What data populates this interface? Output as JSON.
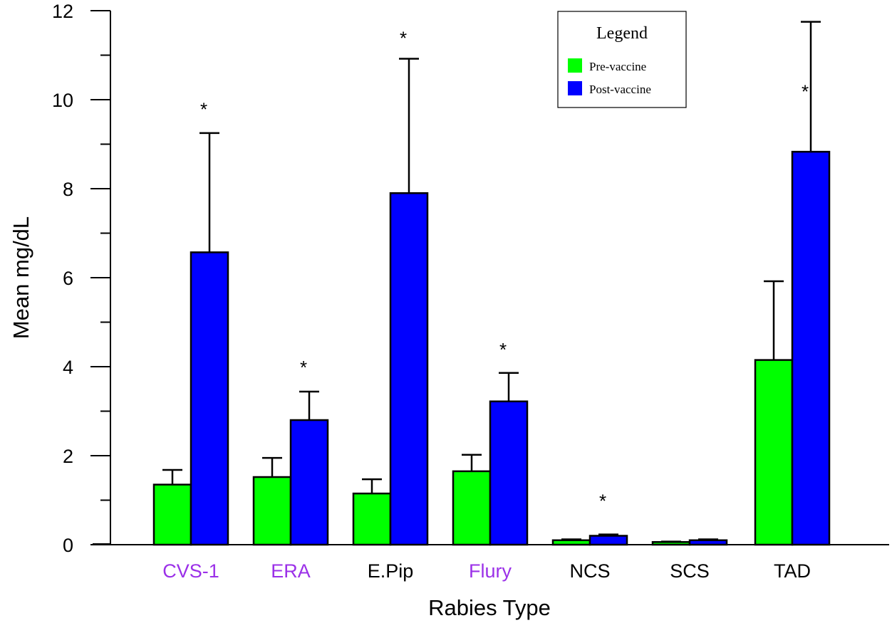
{
  "chart_data": {
    "type": "bar",
    "title": "",
    "xlabel": "Rabies Type",
    "ylabel": "Mean mg/dL",
    "ylim": [
      0,
      12
    ],
    "yticks": [
      0,
      2,
      4,
      6,
      8,
      10,
      12
    ],
    "grid": false,
    "categories": [
      "CVS-1",
      "ERA",
      "E.Pip",
      "Flury",
      "NCS",
      "SCS",
      "TAD"
    ],
    "category_colors": [
      "#9b30e8",
      "#9b30e8",
      "#000000",
      "#9b30e8",
      "#000000",
      "#000000",
      "#000000"
    ],
    "series": [
      {
        "name": "Pre-vaccine",
        "color": "#00ff00",
        "values": [
          1.35,
          1.52,
          1.15,
          1.65,
          0.1,
          0.06,
          4.15
        ],
        "errors": [
          0.33,
          0.43,
          0.32,
          0.37,
          0.02,
          0.01,
          1.77
        ]
      },
      {
        "name": "Post-vaccine",
        "color": "#0000ff",
        "values": [
          6.57,
          2.8,
          7.9,
          3.22,
          0.2,
          0.1,
          8.83
        ],
        "errors": [
          2.68,
          0.64,
          3.02,
          0.64,
          0.03,
          0.02,
          2.92
        ]
      }
    ],
    "significance": [
      "*",
      "*",
      "*",
      "*",
      "*",
      "",
      "*"
    ],
    "significance_y": [
      9.8,
      4.0,
      11.4,
      4.4,
      1.0,
      null,
      10.2
    ],
    "legend": {
      "title": "Legend",
      "placement": "top-right",
      "entries": [
        "Pre-vaccine",
        "Post-vaccine"
      ]
    }
  }
}
